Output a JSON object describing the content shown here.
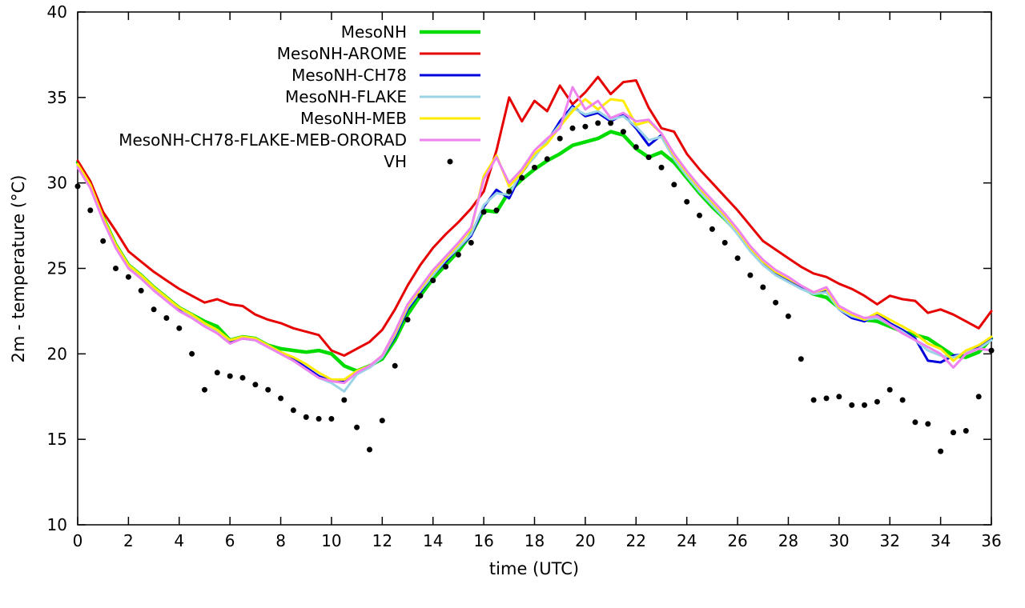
{
  "chart_data": {
    "type": "line",
    "title": "",
    "xlabel": "time (UTC)",
    "ylabel": "2m - temperature (°C)",
    "xlim": [
      0,
      36
    ],
    "ylim": [
      10,
      40
    ],
    "xtick_step": 2,
    "ytick_step": 5,
    "grid": false,
    "legend_position": "top-inside",
    "x_start": 0,
    "x_step": 0.5,
    "series": [
      {
        "name": "MesoNH",
        "type": "line",
        "color": "#00dc00",
        "width": 4.5,
        "values": [
          31.2,
          29.9,
          28.0,
          26.4,
          25.2,
          24.6,
          23.9,
          23.3,
          22.7,
          22.3,
          21.9,
          21.6,
          20.8,
          21.0,
          20.9,
          20.5,
          20.3,
          20.2,
          20.1,
          20.2,
          20.0,
          19.3,
          19.0,
          19.3,
          19.7,
          20.8,
          22.3,
          23.4,
          24.4,
          25.2,
          26.0,
          27.0,
          28.4,
          28.3,
          29.5,
          30.2,
          30.8,
          31.3,
          31.7,
          32.2,
          32.4,
          32.6,
          33.0,
          32.8,
          32.0,
          31.5,
          31.8,
          31.2,
          30.3,
          29.4,
          28.6,
          27.9,
          27.1,
          26.2,
          25.4,
          24.8,
          24.4,
          23.9,
          23.5,
          23.3,
          22.7,
          22.3,
          22.0,
          21.9,
          21.6,
          21.3,
          21.1,
          20.9,
          20.4,
          19.9,
          19.8,
          20.1,
          20.9
        ]
      },
      {
        "name": "MesoNH-AROME",
        "type": "line",
        "color": "#e60000",
        "width": 3,
        "values": [
          31.3,
          30.1,
          28.3,
          27.2,
          26.0,
          25.4,
          24.8,
          24.3,
          23.8,
          23.4,
          23.0,
          23.2,
          22.9,
          22.8,
          22.3,
          22.0,
          21.8,
          21.5,
          21.3,
          21.1,
          20.2,
          19.9,
          20.3,
          20.7,
          21.4,
          22.6,
          24.0,
          25.2,
          26.2,
          27.0,
          27.7,
          28.5,
          29.5,
          31.9,
          35.0,
          33.6,
          34.8,
          34.2,
          35.7,
          34.6,
          35.3,
          36.2,
          35.2,
          35.9,
          36.0,
          34.4,
          33.2,
          33.0,
          31.7,
          30.8,
          30.0,
          29.2,
          28.4,
          27.5,
          26.6,
          26.1,
          25.6,
          25.1,
          24.7,
          24.5,
          24.1,
          23.8,
          23.4,
          22.9,
          23.4,
          23.2,
          23.1,
          22.4,
          22.6,
          22.3,
          21.9,
          21.5,
          22.5
        ]
      },
      {
        "name": "MesoNH-CH78",
        "type": "line",
        "color": "#0000dc",
        "width": 3,
        "values": [
          31.0,
          29.8,
          27.9,
          26.3,
          25.1,
          24.5,
          23.8,
          23.2,
          22.6,
          22.2,
          21.7,
          21.3,
          20.7,
          20.9,
          20.8,
          20.4,
          20.1,
          19.7,
          19.2,
          18.7,
          18.4,
          18.4,
          18.9,
          19.2,
          19.8,
          21.0,
          22.6,
          23.6,
          24.6,
          25.4,
          26.2,
          26.9,
          28.6,
          29.6,
          29.1,
          30.6,
          31.6,
          32.4,
          33.6,
          34.5,
          33.9,
          34.1,
          33.6,
          34.0,
          33.2,
          32.2,
          32.8,
          31.5,
          30.5,
          29.6,
          28.8,
          28.0,
          27.1,
          26.1,
          25.3,
          24.7,
          24.3,
          23.9,
          23.6,
          23.7,
          22.6,
          22.1,
          21.9,
          22.3,
          21.8,
          21.4,
          20.9,
          19.6,
          19.5,
          19.9,
          20.0,
          20.4,
          20.9
        ]
      },
      {
        "name": "MesoNH-FLAKE",
        "type": "line",
        "color": "#9bd3e6",
        "width": 3,
        "values": [
          31.0,
          29.8,
          27.9,
          26.3,
          25.1,
          24.5,
          23.8,
          23.2,
          22.7,
          22.2,
          21.7,
          21.3,
          20.8,
          21.0,
          20.8,
          20.4,
          20.0,
          19.6,
          19.1,
          18.6,
          18.3,
          17.8,
          18.8,
          19.2,
          19.8,
          21.1,
          22.7,
          23.7,
          24.6,
          25.5,
          26.2,
          27.0,
          28.7,
          29.4,
          29.3,
          30.7,
          31.5,
          32.5,
          33.4,
          34.4,
          34.0,
          34.2,
          33.7,
          33.9,
          33.3,
          32.5,
          32.7,
          31.4,
          30.4,
          29.5,
          28.7,
          27.9,
          27.0,
          26.0,
          25.2,
          24.6,
          24.2,
          23.8,
          23.5,
          23.6,
          22.6,
          22.2,
          22.0,
          22.1,
          21.7,
          21.3,
          20.8,
          20.2,
          19.9,
          19.8,
          20.1,
          20.3,
          20.8
        ]
      },
      {
        "name": "MesoNH-MEB",
        "type": "line",
        "color": "#ffec00",
        "width": 3,
        "values": [
          31.1,
          29.9,
          28.0,
          26.4,
          25.2,
          24.6,
          23.9,
          23.3,
          22.7,
          22.3,
          21.8,
          21.4,
          20.8,
          21.0,
          20.9,
          20.5,
          20.1,
          19.8,
          19.4,
          18.9,
          18.5,
          18.5,
          19.0,
          19.3,
          19.9,
          21.2,
          22.8,
          23.8,
          24.8,
          25.6,
          26.4,
          27.3,
          30.4,
          31.6,
          29.8,
          30.6,
          31.7,
          32.3,
          33.3,
          34.2,
          34.9,
          34.3,
          34.9,
          34.8,
          33.4,
          33.6,
          32.9,
          31.6,
          30.6,
          29.7,
          28.9,
          28.1,
          27.2,
          26.2,
          25.4,
          24.8,
          24.4,
          24.0,
          23.6,
          23.8,
          22.7,
          22.3,
          22.0,
          22.4,
          22.0,
          21.6,
          21.2,
          20.6,
          20.3,
          19.6,
          20.2,
          20.5,
          21.0
        ]
      },
      {
        "name": "MesoNH-CH78-FLAKE-MEB-ORORAD",
        "type": "line",
        "color": "#ee82ee",
        "width": 3,
        "values": [
          30.9,
          29.7,
          27.8,
          26.2,
          25.0,
          24.4,
          23.7,
          23.1,
          22.5,
          22.1,
          21.6,
          21.2,
          20.6,
          20.9,
          20.8,
          20.4,
          20.0,
          19.6,
          19.1,
          18.6,
          18.4,
          18.3,
          18.9,
          19.3,
          19.9,
          21.3,
          22.9,
          23.9,
          24.9,
          25.7,
          26.5,
          27.4,
          30.2,
          31.5,
          30.0,
          30.8,
          31.9,
          32.6,
          33.2,
          35.6,
          34.3,
          34.8,
          33.8,
          34.1,
          33.6,
          33.7,
          32.9,
          31.7,
          30.7,
          29.8,
          29.0,
          28.2,
          27.3,
          26.3,
          25.5,
          24.9,
          24.5,
          24.0,
          23.6,
          23.9,
          22.8,
          22.4,
          22.1,
          22.2,
          21.7,
          21.2,
          20.8,
          20.4,
          20.0,
          19.2,
          20.0,
          20.3,
          20.2
        ]
      },
      {
        "name": "VH",
        "type": "scatter",
        "color": "#000000",
        "size": 3.5,
        "values": [
          29.8,
          28.4,
          26.6,
          25.0,
          24.5,
          23.7,
          22.6,
          22.1,
          21.5,
          20.0,
          17.9,
          18.9,
          18.7,
          18.6,
          18.2,
          17.9,
          17.4,
          16.7,
          16.3,
          16.2,
          16.2,
          17.3,
          15.7,
          14.4,
          16.1,
          19.3,
          22.0,
          23.4,
          24.3,
          25.1,
          25.8,
          26.5,
          28.3,
          28.4,
          29.5,
          30.3,
          30.9,
          31.4,
          32.6,
          33.2,
          33.3,
          33.5,
          33.5,
          33.0,
          32.1,
          31.5,
          30.9,
          29.9,
          28.9,
          28.1,
          27.3,
          26.5,
          25.6,
          24.6,
          23.9,
          23.0,
          22.2,
          19.7,
          17.3,
          17.4,
          17.5,
          17.0,
          17.0,
          17.2,
          17.9,
          17.3,
          16.0,
          15.9,
          14.3,
          15.4,
          15.5,
          17.5,
          20.2
        ]
      }
    ],
    "xticks": [
      0,
      2,
      4,
      6,
      8,
      10,
      12,
      14,
      16,
      18,
      20,
      22,
      24,
      26,
      28,
      30,
      32,
      34,
      36
    ],
    "yticks": [
      10,
      15,
      20,
      25,
      30,
      35,
      40
    ]
  }
}
